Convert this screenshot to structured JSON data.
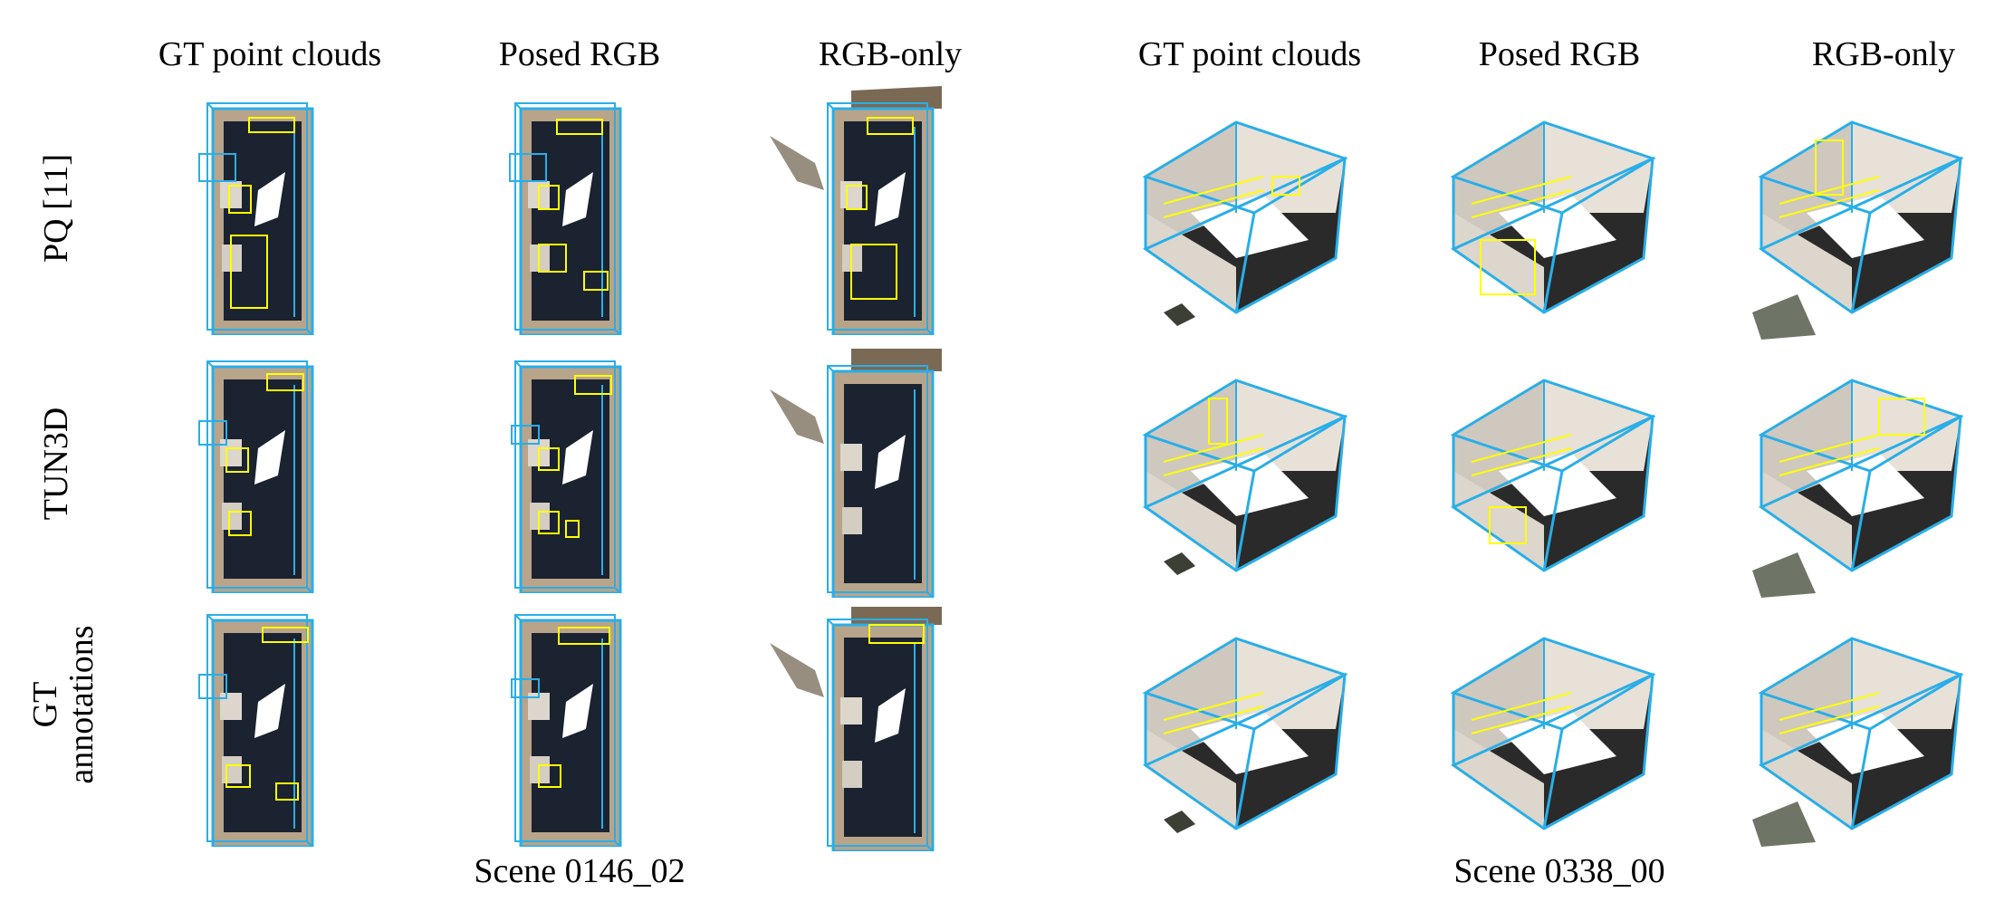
{
  "column_headers": {
    "left": [
      "GT point clouds",
      "Posed RGB",
      "RGB-only"
    ],
    "right": [
      "GT point clouds",
      "Posed RGB",
      "RGB-only"
    ]
  },
  "row_labels": [
    "PQ [11]",
    "TUN3D",
    "GT annotations"
  ],
  "row_label_gt_lines": [
    "GT",
    "annotations"
  ],
  "scene_labels": [
    "Scene 0146_02",
    "Scene 0338_00"
  ],
  "colors": {
    "pred_box": "#ffff00",
    "room_box": "#29aee8",
    "floor": "#1b2230",
    "wall": "#b8a48a",
    "wall_light": "#e8e1d8"
  }
}
